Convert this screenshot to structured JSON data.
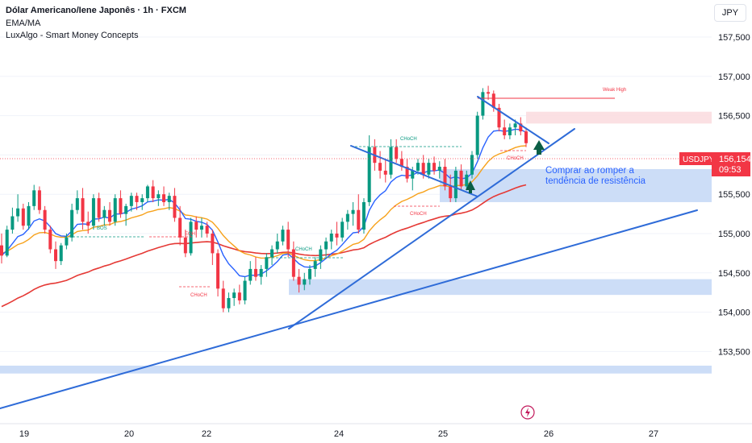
{
  "header": {
    "symbol_line": "Dólar Americano/Iene Japonês · 1h · FXCM",
    "indicator_1": "EMA/MA",
    "indicator_2": "LuxAlgo - Smart Money Concepts"
  },
  "currency_button": "JPY",
  "price_tag": {
    "symbol": "USDJPY",
    "price": "156,154",
    "countdown": "09:53"
  },
  "annotation": {
    "line1": "Comprar ao romper a",
    "line2": "tendência de resistência"
  },
  "colors": {
    "bull": "#089981",
    "bear": "#f23645",
    "ema_fast": "#2962ff",
    "ema_slow": "#f7a21b",
    "ma_long": "#e53935",
    "trendline": "#2e6bd8",
    "demand_zone": "#c9dbf7",
    "supply_zone": "#fbdde0",
    "arrow": "#0b5e45"
  },
  "chart_data": {
    "type": "candlestick",
    "instrument": "USDJPY",
    "timeframe": "1h",
    "y_ticks": [
      "157,500",
      "157,000",
      "156,500",
      "156,000",
      "155,500",
      "155,000",
      "154,500",
      "154,000",
      "153,500"
    ],
    "ylim": [
      153.25,
      157.75
    ],
    "x_ticks": [
      "19",
      "20",
      "22",
      "24",
      "25",
      "26",
      "27"
    ],
    "last_price": 156.154,
    "candles_ohlc": [
      [
        154.85,
        155.0,
        154.62,
        154.72
      ],
      [
        154.72,
        155.1,
        154.7,
        155.05
      ],
      [
        155.05,
        155.33,
        155.0,
        155.22
      ],
      [
        155.22,
        155.5,
        155.15,
        155.32
      ],
      [
        155.32,
        155.38,
        155.05,
        155.1
      ],
      [
        155.1,
        155.4,
        155.05,
        155.35
      ],
      [
        155.35,
        155.62,
        155.3,
        155.55
      ],
      [
        155.55,
        155.6,
        155.25,
        155.3
      ],
      [
        155.3,
        155.35,
        155.0,
        155.05
      ],
      [
        155.05,
        155.1,
        154.75,
        154.8
      ],
      [
        154.8,
        154.9,
        154.55,
        154.65
      ],
      [
        154.65,
        154.88,
        154.6,
        154.85
      ],
      [
        154.85,
        155.0,
        154.8,
        154.95
      ],
      [
        154.95,
        155.38,
        154.9,
        155.3
      ],
      [
        155.3,
        155.55,
        155.25,
        155.45
      ],
      [
        155.45,
        155.58,
        155.05,
        155.15
      ],
      [
        155.15,
        155.28,
        155.0,
        155.1
      ],
      [
        155.1,
        155.5,
        155.05,
        155.45
      ],
      [
        155.45,
        155.52,
        155.15,
        155.2
      ],
      [
        155.2,
        155.35,
        155.1,
        155.3
      ],
      [
        155.3,
        155.4,
        155.1,
        155.15
      ],
      [
        155.15,
        155.5,
        155.1,
        155.45
      ],
      [
        155.45,
        155.55,
        155.2,
        155.25
      ],
      [
        155.25,
        155.38,
        155.1,
        155.35
      ],
      [
        155.35,
        155.52,
        155.28,
        155.48
      ],
      [
        155.48,
        155.52,
        155.3,
        155.4
      ],
      [
        155.4,
        155.5,
        155.3,
        155.45
      ],
      [
        155.45,
        155.62,
        155.4,
        155.6
      ],
      [
        155.6,
        155.68,
        155.4,
        155.45
      ],
      [
        155.45,
        155.55,
        155.35,
        155.5
      ],
      [
        155.5,
        155.6,
        155.35,
        155.4
      ],
      [
        155.4,
        155.52,
        155.3,
        155.48
      ],
      [
        155.48,
        155.58,
        155.15,
        155.2
      ],
      [
        155.2,
        155.35,
        154.85,
        154.95
      ],
      [
        154.95,
        155.05,
        154.7,
        154.75
      ],
      [
        154.75,
        155.2,
        154.72,
        155.15
      ],
      [
        155.15,
        155.22,
        154.95,
        155.05
      ],
      [
        155.05,
        155.2,
        154.95,
        155.1
      ],
      [
        155.1,
        155.15,
        154.95,
        155.0
      ],
      [
        155.0,
        155.05,
        154.6,
        154.75
      ],
      [
        154.75,
        154.8,
        154.2,
        154.3
      ],
      [
        154.3,
        154.4,
        154.0,
        154.05
      ],
      [
        154.05,
        154.25,
        154.0,
        154.18
      ],
      [
        154.18,
        154.3,
        154.08,
        154.25
      ],
      [
        154.25,
        154.35,
        154.1,
        154.15
      ],
      [
        154.15,
        154.45,
        154.1,
        154.4
      ],
      [
        154.4,
        154.65,
        154.35,
        154.55
      ],
      [
        154.55,
        154.7,
        154.4,
        154.45
      ],
      [
        154.45,
        154.6,
        154.35,
        154.55
      ],
      [
        154.55,
        154.75,
        154.45,
        154.7
      ],
      [
        154.7,
        154.85,
        154.6,
        154.8
      ],
      [
        154.8,
        155.0,
        154.75,
        154.9
      ],
      [
        154.9,
        155.1,
        154.85,
        155.05
      ],
      [
        155.05,
        155.15,
        154.7,
        154.8
      ],
      [
        154.8,
        154.9,
        154.4,
        154.45
      ],
      [
        154.45,
        154.55,
        154.25,
        154.35
      ],
      [
        154.35,
        154.5,
        154.28,
        154.42
      ],
      [
        154.42,
        154.6,
        154.35,
        154.55
      ],
      [
        154.55,
        154.7,
        154.45,
        154.65
      ],
      [
        154.65,
        154.85,
        154.55,
        154.8
      ],
      [
        154.8,
        154.95,
        154.7,
        154.9
      ],
      [
        154.9,
        155.05,
        154.8,
        155.0
      ],
      [
        155.0,
        155.15,
        154.85,
        154.95
      ],
      [
        154.95,
        155.2,
        154.9,
        155.15
      ],
      [
        155.15,
        155.3,
        155.05,
        155.25
      ],
      [
        155.25,
        155.4,
        155.1,
        155.3
      ],
      [
        155.3,
        155.5,
        155.0,
        155.05
      ],
      [
        155.05,
        155.45,
        155.0,
        155.4
      ],
      [
        155.4,
        156.25,
        155.35,
        156.1
      ],
      [
        156.1,
        156.2,
        155.8,
        155.9
      ],
      [
        155.9,
        156.05,
        155.7,
        155.8
      ],
      [
        155.8,
        155.95,
        155.65,
        155.75
      ],
      [
        155.75,
        156.2,
        155.7,
        156.1
      ],
      [
        156.1,
        156.2,
        155.9,
        155.95
      ],
      [
        155.95,
        156.05,
        155.8,
        155.85
      ],
      [
        155.85,
        155.95,
        155.65,
        155.7
      ],
      [
        155.7,
        155.85,
        155.55,
        155.8
      ],
      [
        155.8,
        155.95,
        155.75,
        155.9
      ],
      [
        155.9,
        156.0,
        155.7,
        155.75
      ],
      [
        155.75,
        155.95,
        155.7,
        155.9
      ],
      [
        155.9,
        155.98,
        155.75,
        155.8
      ],
      [
        155.8,
        155.92,
        155.7,
        155.85
      ],
      [
        155.85,
        155.95,
        155.55,
        155.6
      ],
      [
        155.6,
        155.75,
        155.4,
        155.45
      ],
      [
        155.45,
        155.85,
        155.4,
        155.8
      ],
      [
        155.8,
        155.88,
        155.55,
        155.6
      ],
      [
        155.6,
        155.8,
        155.55,
        155.75
      ],
      [
        155.75,
        156.05,
        155.7,
        156.0
      ],
      [
        156.0,
        156.55,
        155.95,
        156.5
      ],
      [
        156.5,
        156.85,
        156.45,
        156.8
      ],
      [
        156.8,
        156.88,
        156.7,
        156.78
      ],
      [
        156.78,
        156.82,
        156.55,
        156.6
      ],
      [
        156.6,
        156.65,
        156.3,
        156.35
      ],
      [
        156.35,
        156.45,
        156.2,
        156.25
      ],
      [
        156.25,
        156.4,
        156.2,
        156.35
      ],
      [
        156.35,
        156.45,
        156.25,
        156.4
      ],
      [
        156.4,
        156.48,
        156.25,
        156.3
      ],
      [
        156.3,
        156.35,
        156.1,
        156.15
      ]
    ],
    "ema_fast_series": "EMA (blue)",
    "ema_slow_series": "EMA (orange)",
    "ma_long_series": "MA (red)",
    "zones": [
      {
        "type": "supply",
        "y1": 156.4,
        "y2": 156.55
      },
      {
        "type": "demand",
        "y1": 155.4,
        "y2": 155.82
      },
      {
        "type": "demand",
        "y1": 154.22,
        "y2": 154.42
      },
      {
        "type": "demand",
        "y1": 153.22,
        "y2": 153.32
      }
    ],
    "labels": [
      {
        "text": "BOS",
        "color": "bull"
      },
      {
        "text": "EQH",
        "color": "bear"
      },
      {
        "text": "CHoCH",
        "color": "bear",
        "idx": 1
      },
      {
        "text": "CHoCH",
        "color": "bull",
        "idx": 2
      },
      {
        "text": "CHoCH",
        "color": "bull",
        "idx": 3
      },
      {
        "text": "CHoCH",
        "color": "bear",
        "idx": 4
      },
      {
        "text": "CHoCH",
        "color": "bear",
        "idx": 5
      },
      {
        "text": "Weak High",
        "color": "bear"
      }
    ]
  }
}
